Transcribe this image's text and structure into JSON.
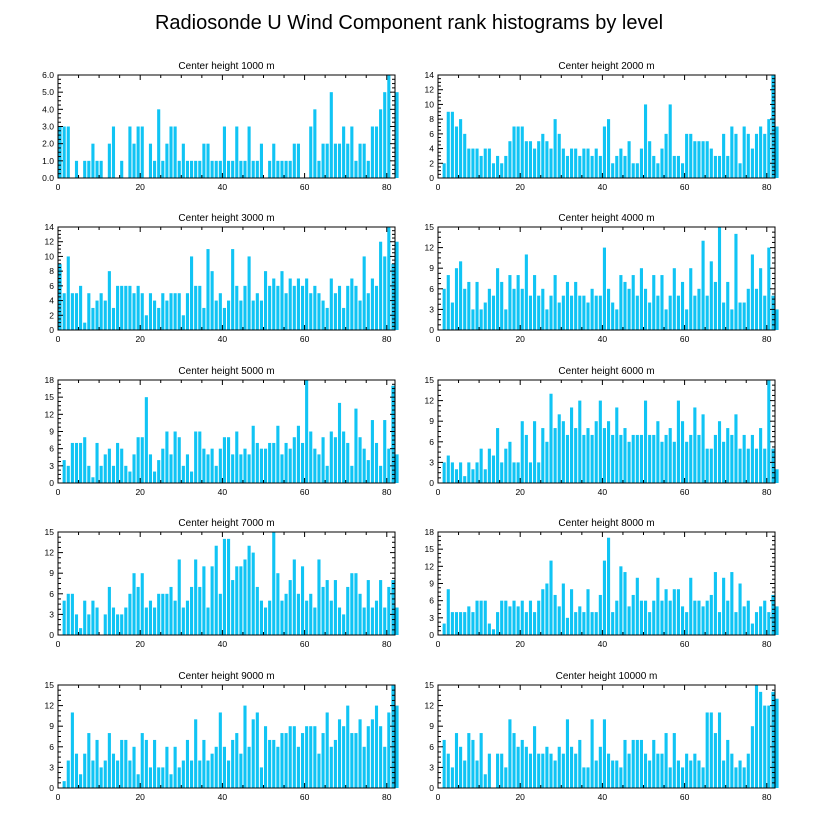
{
  "figure": {
    "title": "Radiosonde U Wind Component rank histograms by level",
    "bar_color": "#10c4f4",
    "frame_color": "#000000"
  },
  "chart_data": [
    {
      "type": "bar",
      "title": "Center height 1000 m",
      "xlabel": "",
      "ylabel": "",
      "xlim": [
        0,
        82
      ],
      "ylim": [
        0,
        6.0
      ],
      "xticks": [
        0,
        20,
        40,
        60,
        80
      ],
      "xtick_labels": [
        "0",
        "20",
        "40",
        "60",
        "80"
      ],
      "yticks": [
        0,
        1,
        2,
        3,
        4,
        5,
        6
      ],
      "ytick_labels": [
        "0.0",
        "1.0",
        "2.0",
        "3.0",
        "4.0",
        "5.0",
        "6.0"
      ],
      "values": [
        3,
        3,
        3,
        0,
        1,
        0,
        1,
        1,
        2,
        1,
        1,
        0,
        2,
        3,
        0,
        1,
        0,
        3,
        2,
        3,
        3,
        0,
        2,
        1,
        4,
        1,
        2,
        3,
        3,
        1,
        2,
        1,
        1,
        1,
        1,
        2,
        2,
        1,
        1,
        1,
        3,
        1,
        1,
        3,
        1,
        1,
        3,
        1,
        1,
        2,
        0,
        1,
        2,
        1,
        1,
        1,
        1,
        2,
        2,
        0,
        0,
        3,
        4,
        1,
        2,
        2,
        5,
        2,
        2,
        3,
        2,
        3,
        1,
        2,
        2,
        1,
        3,
        3,
        4,
        5,
        6,
        0,
        5
      ]
    },
    {
      "type": "bar",
      "title": "Center height 2000 m",
      "xlabel": "",
      "ylabel": "",
      "xlim": [
        0,
        82
      ],
      "ylim": [
        0,
        14
      ],
      "xticks": [
        0,
        20,
        40,
        60,
        80
      ],
      "xtick_labels": [
        "0",
        "20",
        "40",
        "60",
        "80"
      ],
      "yticks": [
        0,
        2,
        4,
        6,
        8,
        10,
        12,
        14
      ],
      "ytick_labels": [
        "0",
        "2",
        "4",
        "6",
        "8",
        "10",
        "12",
        "14"
      ],
      "values": [
        0,
        2,
        9,
        9,
        7,
        8,
        6,
        4,
        4,
        4,
        3,
        4,
        4,
        2,
        3,
        2,
        3,
        5,
        7,
        7,
        7,
        5,
        5,
        4,
        5,
        6,
        5,
        4,
        8,
        6,
        4,
        3,
        4,
        4,
        3,
        4,
        4,
        3,
        4,
        3,
        7,
        8,
        2,
        3,
        4,
        3,
        5,
        2,
        2,
        4,
        10,
        5,
        3,
        2,
        4,
        6,
        10,
        3,
        3,
        2,
        6,
        6,
        5,
        5,
        5,
        5,
        4,
        3,
        3,
        6,
        3,
        7,
        6,
        2,
        7,
        6,
        4,
        6,
        7,
        6,
        8,
        14,
        7
      ]
    },
    {
      "type": "bar",
      "title": "Center height 3000 m",
      "xlabel": "",
      "ylabel": "",
      "xlim": [
        0,
        82
      ],
      "ylim": [
        0,
        14
      ],
      "xticks": [
        0,
        20,
        40,
        60,
        80
      ],
      "xtick_labels": [
        "0",
        "20",
        "40",
        "60",
        "80"
      ],
      "yticks": [
        0,
        2,
        4,
        6,
        8,
        10,
        12,
        14
      ],
      "ytick_labels": [
        "0",
        "2",
        "4",
        "6",
        "8",
        "10",
        "12",
        "14"
      ],
      "values": [
        9,
        5,
        10,
        5,
        5,
        6,
        1,
        5,
        3,
        4,
        5,
        4,
        8,
        3,
        6,
        6,
        6,
        6,
        5,
        6,
        5,
        2,
        5,
        4,
        3,
        5,
        4,
        5,
        5,
        5,
        2,
        5,
        10,
        6,
        6,
        3,
        11,
        8,
        4,
        5,
        3,
        4,
        11,
        6,
        4,
        6,
        10,
        4,
        5,
        4,
        8,
        6,
        7,
        6,
        8,
        5,
        7,
        6,
        7,
        6,
        7,
        5,
        6,
        5,
        4,
        3,
        7,
        5,
        6,
        3,
        6,
        7,
        6,
        4,
        10,
        5,
        7,
        6,
        12,
        10,
        14,
        9,
        12
      ]
    },
    {
      "type": "bar",
      "title": "Center height 4000 m",
      "xlabel": "",
      "ylabel": "",
      "xlim": [
        0,
        82
      ],
      "ylim": [
        0,
        15
      ],
      "xticks": [
        0,
        20,
        40,
        60,
        80
      ],
      "xtick_labels": [
        "0",
        "20",
        "40",
        "60",
        "80"
      ],
      "yticks": [
        0,
        3,
        6,
        9,
        12,
        15
      ],
      "ytick_labels": [
        "0",
        "3",
        "6",
        "9",
        "12",
        "15"
      ],
      "values": [
        0,
        6,
        8,
        4,
        9,
        10,
        6,
        7,
        3,
        7,
        3,
        4,
        6,
        5,
        9,
        7,
        3,
        8,
        6,
        8,
        6,
        11,
        5,
        8,
        5,
        6,
        3,
        5,
        8,
        4,
        5,
        7,
        5,
        7,
        5,
        5,
        4,
        6,
        5,
        5,
        12,
        6,
        4,
        3,
        8,
        7,
        6,
        8,
        5,
        9,
        6,
        4,
        8,
        5,
        8,
        3,
        5,
        9,
        5,
        7,
        3,
        9,
        5,
        6,
        13,
        5,
        10,
        7,
        15,
        4,
        7,
        3,
        14,
        4,
        4,
        6,
        11,
        6,
        9,
        5,
        12,
        5,
        3
      ]
    },
    {
      "type": "bar",
      "title": "Center height 5000 m",
      "xlabel": "",
      "ylabel": "",
      "xlim": [
        0,
        82
      ],
      "ylim": [
        0,
        18
      ],
      "xticks": [
        0,
        20,
        40,
        60,
        80
      ],
      "xtick_labels": [
        "0",
        "20",
        "40",
        "60",
        "80"
      ],
      "yticks": [
        0,
        3,
        6,
        9,
        12,
        15,
        18
      ],
      "ytick_labels": [
        "0",
        "3",
        "6",
        "9",
        "12",
        "15",
        "18"
      ],
      "values": [
        0,
        4,
        3,
        7,
        7,
        7,
        8,
        3,
        1,
        7,
        3,
        5,
        6,
        3,
        7,
        6,
        3,
        2,
        5,
        8,
        8,
        15,
        5,
        2,
        4,
        6,
        9,
        5,
        9,
        8,
        3,
        5,
        2,
        9,
        9,
        6,
        5,
        6,
        3,
        6,
        8,
        8,
        5,
        9,
        5,
        6,
        5,
        10,
        7,
        6,
        6,
        7,
        7,
        10,
        5,
        7,
        6,
        8,
        10,
        7,
        18,
        9,
        6,
        5,
        8,
        3,
        9,
        8,
        14,
        9,
        7,
        3,
        13,
        8,
        6,
        4,
        11,
        7,
        3,
        11,
        6,
        17,
        5
      ]
    },
    {
      "type": "bar",
      "title": "Center height 6000 m",
      "xlabel": "",
      "ylabel": "",
      "xlim": [
        0,
        82
      ],
      "ylim": [
        0,
        15
      ],
      "xticks": [
        0,
        20,
        40,
        60,
        80
      ],
      "xtick_labels": [
        "0",
        "20",
        "40",
        "60",
        "80"
      ],
      "yticks": [
        0,
        3,
        6,
        9,
        12,
        15
      ],
      "ytick_labels": [
        "0",
        "3",
        "6",
        "9",
        "12",
        "15"
      ],
      "values": [
        0,
        3,
        4,
        3,
        2,
        3,
        1,
        3,
        2,
        3,
        5,
        2,
        5,
        4,
        8,
        3,
        5,
        6,
        3,
        3,
        9,
        7,
        3,
        9,
        3,
        8,
        6,
        13,
        8,
        10,
        9,
        7,
        11,
        8,
        12,
        7,
        8,
        7,
        9,
        12,
        8,
        9,
        7,
        11,
        7,
        8,
        6,
        7,
        7,
        7,
        12,
        7,
        7,
        9,
        6,
        7,
        8,
        6,
        12,
        9,
        6,
        7,
        11,
        7,
        10,
        5,
        5,
        7,
        9,
        6,
        8,
        7,
        10,
        5,
        7,
        5,
        7,
        5,
        8,
        5,
        15,
        5,
        2
      ]
    },
    {
      "type": "bar",
      "title": "Center height 7000 m",
      "xlabel": "",
      "ylabel": "",
      "xlim": [
        0,
        82
      ],
      "ylim": [
        0,
        15
      ],
      "xticks": [
        0,
        20,
        40,
        60,
        80
      ],
      "xtick_labels": [
        "0",
        "20",
        "40",
        "60",
        "80"
      ],
      "yticks": [
        0,
        3,
        6,
        9,
        12,
        15
      ],
      "ytick_labels": [
        "0",
        "3",
        "6",
        "9",
        "12",
        "15"
      ],
      "values": [
        0,
        5,
        6,
        6,
        3,
        1,
        5,
        3,
        5,
        4,
        0,
        3,
        7,
        4,
        3,
        3,
        4,
        6,
        9,
        7,
        9,
        4,
        5,
        4,
        6,
        6,
        6,
        7,
        5,
        11,
        4,
        5,
        7,
        11,
        7,
        10,
        4,
        10,
        13,
        6,
        14,
        14,
        8,
        10,
        10,
        11,
        13,
        12,
        7,
        5,
        4,
        5,
        15,
        9,
        5,
        6,
        8,
        11,
        6,
        10,
        5,
        6,
        4,
        11,
        7,
        8,
        5,
        8,
        4,
        3,
        7,
        9,
        9,
        6,
        4,
        8,
        4,
        5,
        8,
        4,
        7,
        8,
        4
      ]
    },
    {
      "type": "bar",
      "title": "Center height 8000 m",
      "xlabel": "",
      "ylabel": "",
      "xlim": [
        0,
        82
      ],
      "ylim": [
        0,
        18
      ],
      "xticks": [
        0,
        20,
        40,
        60,
        80
      ],
      "xtick_labels": [
        "0",
        "20",
        "40",
        "60",
        "80"
      ],
      "yticks": [
        0,
        3,
        6,
        9,
        12,
        15,
        18
      ],
      "ytick_labels": [
        "0",
        "3",
        "6",
        "9",
        "12",
        "15",
        "18"
      ],
      "values": [
        0,
        2,
        8,
        4,
        4,
        4,
        4,
        5,
        4,
        6,
        6,
        6,
        2,
        1,
        4,
        6,
        6,
        5,
        6,
        5,
        6,
        4,
        6,
        4,
        6,
        8,
        9,
        13,
        7,
        5,
        9,
        3,
        8,
        4,
        5,
        4,
        8,
        4,
        4,
        7,
        13,
        17,
        4,
        6,
        12,
        11,
        5,
        7,
        10,
        6,
        6,
        4,
        6,
        10,
        6,
        8,
        6,
        8,
        8,
        5,
        4,
        10,
        6,
        6,
        5,
        6,
        7,
        11,
        4,
        10,
        6,
        11,
        4,
        9,
        5,
        6,
        2,
        4,
        5,
        6,
        4,
        7,
        5
      ]
    },
    {
      "type": "bar",
      "title": "Center height 9000 m",
      "xlabel": "",
      "ylabel": "",
      "xlim": [
        0,
        82
      ],
      "ylim": [
        0,
        15
      ],
      "xticks": [
        0,
        20,
        40,
        60,
        80
      ],
      "xtick_labels": [
        "0",
        "20",
        "40",
        "60",
        "80"
      ],
      "yticks": [
        0,
        3,
        6,
        9,
        12,
        15
      ],
      "ytick_labels": [
        "0",
        "3",
        "6",
        "9",
        "12",
        "15"
      ],
      "values": [
        0,
        1,
        4,
        11,
        5,
        2,
        5,
        8,
        4,
        7,
        3,
        4,
        8,
        5,
        4,
        7,
        7,
        4,
        6,
        2,
        8,
        7,
        3,
        7,
        3,
        3,
        6,
        2,
        6,
        3,
        4,
        7,
        4,
        10,
        4,
        7,
        4,
        5,
        6,
        11,
        6,
        4,
        7,
        8,
        5,
        12,
        6,
        10,
        11,
        3,
        9,
        7,
        7,
        6,
        8,
        8,
        9,
        9,
        6,
        8,
        9,
        9,
        9,
        5,
        8,
        11,
        6,
        7,
        10,
        9,
        12,
        8,
        8,
        10,
        6,
        9,
        10,
        12,
        9,
        6,
        11,
        15,
        12
      ]
    },
    {
      "type": "bar",
      "title": "Center height 10000 m",
      "xlabel": "",
      "ylabel": "",
      "xlim": [
        0,
        82
      ],
      "ylim": [
        0,
        15
      ],
      "xticks": [
        0,
        20,
        40,
        60,
        80
      ],
      "xtick_labels": [
        "0",
        "20",
        "40",
        "60",
        "80"
      ],
      "yticks": [
        0,
        3,
        6,
        9,
        12,
        15
      ],
      "ytick_labels": [
        "0",
        "3",
        "6",
        "9",
        "12",
        "15"
      ],
      "values": [
        0,
        7,
        5,
        3,
        8,
        6,
        4,
        8,
        7,
        4,
        8,
        2,
        5,
        0,
        5,
        5,
        3,
        10,
        8,
        6,
        7,
        6,
        5,
        9,
        5,
        5,
        6,
        5,
        4,
        6,
        5,
        10,
        6,
        5,
        7,
        3,
        3,
        10,
        4,
        6,
        10,
        5,
        4,
        4,
        3,
        7,
        5,
        7,
        7,
        7,
        5,
        4,
        7,
        5,
        5,
        8,
        3,
        8,
        4,
        3,
        5,
        4,
        5,
        4,
        3,
        11,
        11,
        8,
        11,
        4,
        7,
        5,
        3,
        4,
        3,
        5,
        9,
        15,
        14,
        12,
        12,
        14,
        13
      ]
    }
  ]
}
